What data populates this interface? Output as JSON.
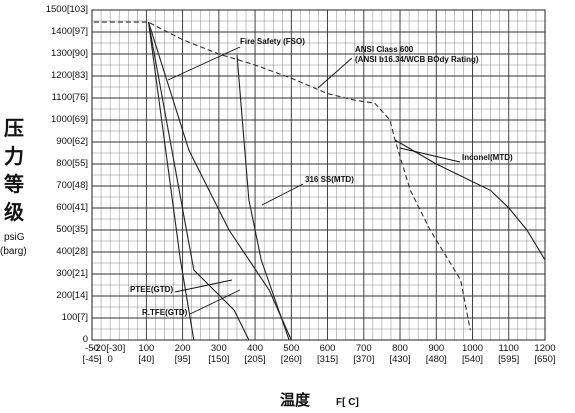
{
  "chart_data": {
    "type": "line",
    "y_label": [
      "压",
      "力",
      "等",
      "级"
    ],
    "y_unit": [
      "psiG",
      "(barg)"
    ],
    "x_label": "温度",
    "x_unit": "F[ C]",
    "xlim": [
      -50,
      1200
    ],
    "ylim": [
      0,
      1500
    ],
    "grid": true,
    "xticks": [
      {
        "value": -50,
        "label": "-50\n[-45]"
      },
      {
        "value": -20,
        "label": "-20[-30]"
      },
      0,
      {
        "value": 100,
        "label": "100\n[40]"
      },
      {
        "value": 200,
        "label": "200\n[95]"
      },
      {
        "value": 300,
        "label": "300\n[150]"
      },
      {
        "value": 400,
        "label": "400\n[205]"
      },
      {
        "value": 500,
        "label": "500\n[260]"
      },
      {
        "value": 600,
        "label": "600\n[315]"
      },
      {
        "value": 700,
        "label": "700\n[370]"
      },
      {
        "value": 800,
        "label": "800\n[430]"
      },
      {
        "value": 900,
        "label": "900\n[480]"
      },
      {
        "value": 1000,
        "label": "1000\n[540]"
      },
      {
        "value": 1100,
        "label": "1100\n[595]"
      },
      {
        "value": 1200,
        "label": "1200\n[650]"
      }
    ],
    "yticks": [
      0,
      {
        "value": 100,
        "label": "100[7]"
      },
      {
        "value": 200,
        "label": "200[14]"
      },
      {
        "value": 300,
        "label": "300[21]"
      },
      {
        "value": 400,
        "label": "400[28]"
      },
      {
        "value": 500,
        "label": "500[35]"
      },
      {
        "value": 600,
        "label": "600[41]"
      },
      {
        "value": 700,
        "label": "700[48]"
      },
      {
        "value": 800,
        "label": "800[55]"
      },
      {
        "value": 900,
        "label": "900[62]"
      },
      {
        "value": 1000,
        "label": "1000[69]"
      },
      {
        "value": 1100,
        "label": "1100[76]"
      },
      {
        "value": 1200,
        "label": "1200[83]"
      },
      {
        "value": 1300,
        "label": "1300[90]"
      },
      {
        "value": 1400,
        "label": "1400[97]"
      },
      {
        "value": 1500,
        "label": "1500[103]"
      }
    ],
    "series": [
      {
        "name": "ANSI Class 600",
        "note": "(ANSI b16.34/WCB BOdy Rating)",
        "color": "#333333",
        "dashed": true,
        "x": [
          -45,
          105,
          200,
          300,
          400,
          500,
          600,
          675,
          730,
          772,
          786,
          828,
          883,
          967,
          994
        ],
        "values": [
          1445,
          1445,
          1365,
          1300,
          1250,
          1190,
          1120,
          1090,
          1077,
          1000,
          909,
          682,
          500,
          273,
          45
        ]
      },
      {
        "name": "Inconel(MTD)",
        "color": "#222222",
        "dashed": false,
        "x": [
          786,
          900,
          1000,
          1050,
          1100,
          1150,
          1200
        ],
        "values": [
          909,
          800,
          720,
          680,
          600,
          500,
          364
        ]
      },
      {
        "name": "Fire Safety (FSO)",
        "color": "#222222",
        "dashed": false,
        "x": [
          106,
          217,
          328,
          439,
          500
        ],
        "values": [
          1445,
          864,
          500,
          227,
          0
        ]
      },
      {
        "name": "316 SS(MTD)",
        "color": "#222222",
        "dashed": false,
        "x": [
          350,
          383,
          417,
          494
        ],
        "values": [
          1295,
          636,
          364,
          0
        ]
      },
      {
        "name": "PTEE(GTD)",
        "color": "#222222",
        "dashed": false,
        "x": [
          106,
          203,
          231,
          342,
          383
        ],
        "values": [
          1445,
          568,
          318,
          136,
          0
        ]
      },
      {
        "name": "R.TFE(GTD)",
        "color": "#222222",
        "dashed": false,
        "x": [
          106,
          183,
          194,
          231
        ],
        "values": [
          1445,
          500,
          364,
          0
        ]
      }
    ]
  }
}
